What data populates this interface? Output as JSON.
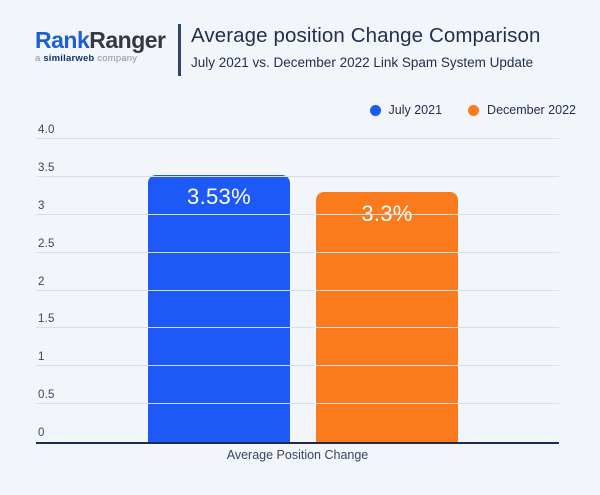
{
  "logo": {
    "brand_part1": "Rank",
    "brand_part2": "Ranger",
    "tagline_prefix": "a ",
    "tagline_brand": "similarweb",
    "tagline_suffix": " company"
  },
  "header": {
    "title": "Average position Change Comparison",
    "subtitle": "July 2021 vs. December 2022 Link Spam System Update"
  },
  "chart_data": {
    "type": "bar",
    "title": "Average position Change Comparison",
    "subtitle": "July 2021 vs. December 2022 Link Spam System Update",
    "xlabel": "Average Position Change",
    "ylabel": "",
    "ylim": [
      0,
      4
    ],
    "ytick_labels": [
      "4.0",
      "3.5",
      "3",
      "2.5",
      "2",
      "1.5",
      "1",
      "0.5",
      "0"
    ],
    "grid": true,
    "legend_position": "top-right",
    "categories": [
      "Average Position Change"
    ],
    "series": [
      {
        "name": "July 2021",
        "values": [
          3.53
        ],
        "label": "3.53%",
        "color": "#1c59f7"
      },
      {
        "name": "December 2022",
        "values": [
          3.3
        ],
        "label": "3.3%",
        "color": "#fb7b1c"
      }
    ]
  },
  "colors": {
    "background": "#f2f5fa",
    "navy_text": "#232f4e",
    "gridline": "#d9dee8",
    "axis": "#1e2b4c",
    "tick_text": "#39455f",
    "bar_blue": "#1c59f7",
    "bar_orange": "#fb7b1c",
    "logo_blue": "#1c60d4",
    "logo_dark": "#35383d",
    "tagline_navy": "#12356f",
    "tagline_gray": "#8a929c"
  }
}
